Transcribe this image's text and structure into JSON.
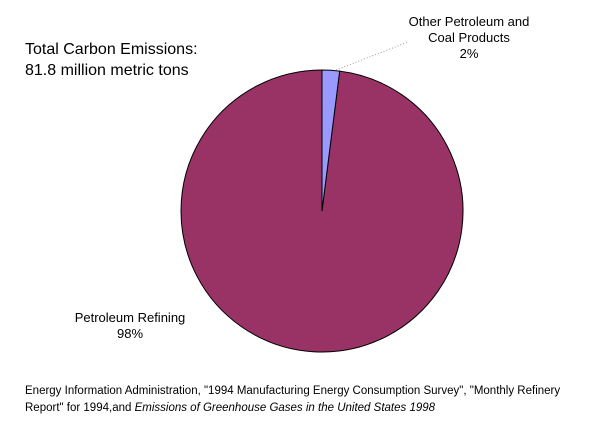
{
  "chart_data": {
    "type": "pie",
    "title": "Total Carbon Emissions:",
    "subtitle": "81.8 million metric tons",
    "categories": [
      "Other Petroleum and Coal Products",
      "Petroleum Refining"
    ],
    "values": [
      2,
      98
    ],
    "value_labels": [
      "2%",
      "98%"
    ],
    "colors": [
      "#9999ff",
      "#993366"
    ],
    "source": [
      "Energy Information Administration, \"1994 Manufacturing Energy Consumption Survey\",  \"Monthly Refinery Report\" for 1994,and ",
      "Emissions of Greenhouse Gases in the United States 1998"
    ]
  }
}
